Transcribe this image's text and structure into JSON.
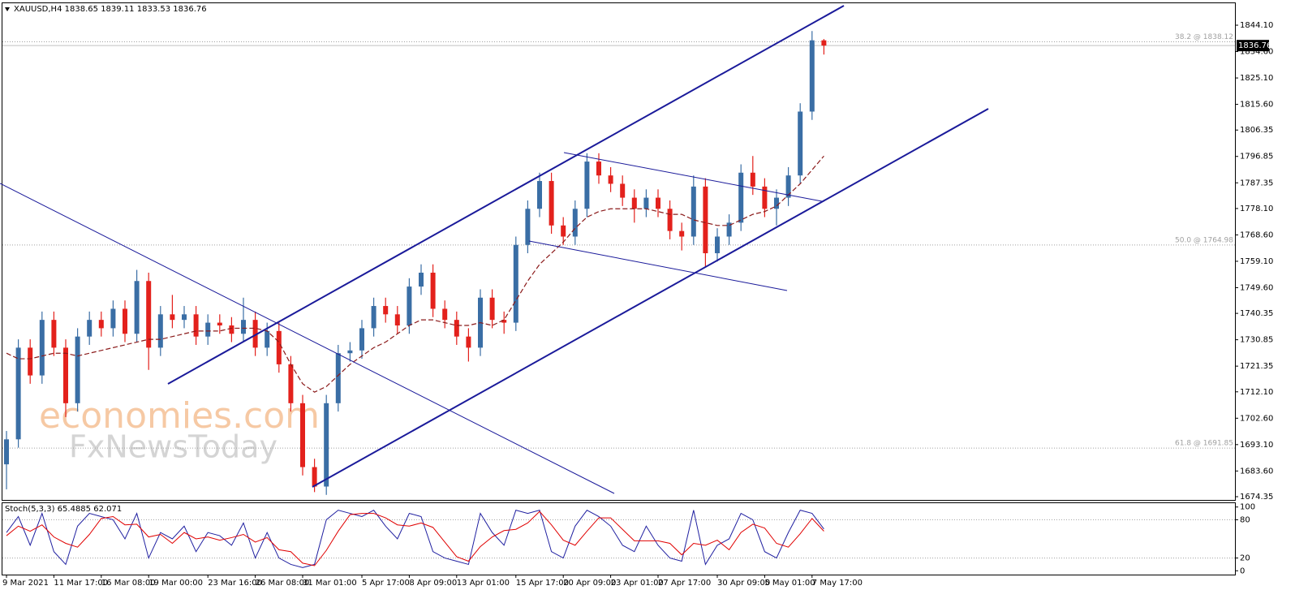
{
  "chart_data": {
    "type": "candlestick",
    "symbol": "XAUUSD,H4",
    "up_color": "#3a6ea5",
    "down_color": "#e3211c",
    "categories": [
      "9 Mar 2021",
      null,
      null,
      null,
      "11 Mar 17:00",
      null,
      null,
      null,
      "16 Mar 08:00",
      null,
      null,
      null,
      "19 Mar 00:00",
      null,
      null,
      null,
      null,
      "23 Mar 16:00",
      null,
      null,
      null,
      "26 Mar 08:00",
      null,
      null,
      null,
      "31 Mar 01:00",
      null,
      null,
      null,
      null,
      "5 Apr 17:00",
      null,
      null,
      null,
      "8 Apr 09:00",
      null,
      null,
      null,
      "13 Apr 01:00",
      null,
      null,
      null,
      null,
      "15 Apr 17:00",
      null,
      null,
      null,
      "20 Apr 09:00",
      null,
      null,
      null,
      "23 Apr 01:00",
      null,
      null,
      null,
      "27 Apr 17:00",
      null,
      null,
      null,
      null,
      "30 Apr 09:00",
      null,
      null,
      null,
      "5 May 01:00",
      null,
      null,
      null,
      "7 May 17:00",
      null
    ],
    "open": [
      1686,
      1695,
      1728,
      1718,
      1738,
      1728,
      1708,
      1732,
      1738,
      1735,
      1742,
      1733,
      1752,
      1728,
      1740,
      1738,
      1740,
      1732,
      1737,
      1736,
      1733,
      1738,
      1728,
      1734,
      1722,
      1708,
      1685,
      1678,
      1708,
      1726,
      1727,
      1735,
      1743,
      1740,
      1736,
      1750,
      1755,
      1742,
      1738,
      1732,
      1728,
      1746,
      1738,
      1737,
      1765,
      1778,
      1788,
      1772,
      1768,
      1778,
      1795,
      1790,
      1787,
      1782,
      1778,
      1782,
      1778,
      1770,
      1768,
      1786,
      1762,
      1768,
      1773,
      1791,
      1786,
      1778,
      1782,
      1790,
      1813,
      1838.65
    ],
    "high": [
      1698,
      1731,
      1731,
      1741,
      1741,
      1731,
      1735,
      1741,
      1741,
      1745,
      1745,
      1756,
      1755,
      1743,
      1747,
      1743,
      1743,
      1740,
      1740,
      1739,
      1746,
      1741,
      1737,
      1737,
      1725,
      1711,
      1688,
      1711,
      1729,
      1730,
      1738,
      1746,
      1746,
      1743,
      1753,
      1758,
      1758,
      1745,
      1741,
      1735,
      1749,
      1749,
      1741,
      1768,
      1781,
      1791,
      1791,
      1775,
      1781,
      1798,
      1798,
      1793,
      1790,
      1785,
      1785,
      1785,
      1781,
      1773,
      1790,
      1789,
      1771,
      1776,
      1794,
      1797,
      1789,
      1785,
      1793,
      1816,
      1842,
      1839.11
    ],
    "low": [
      1677,
      1692,
      1715,
      1715,
      1725,
      1703,
      1705,
      1729,
      1732,
      1732,
      1730,
      1730,
      1720,
      1725,
      1735,
      1735,
      1729,
      1729,
      1733,
      1730,
      1730,
      1725,
      1725,
      1719,
      1705,
      1682,
      1676,
      1675,
      1705,
      1723,
      1724,
      1732,
      1737,
      1733,
      1733,
      1747,
      1739,
      1735,
      1729,
      1723,
      1725,
      1735,
      1733,
      1734,
      1762,
      1775,
      1769,
      1765,
      1765,
      1775,
      1787,
      1784,
      1779,
      1773,
      1775,
      1775,
      1767,
      1763,
      1765,
      1757,
      1759,
      1765,
      1770,
      1783,
      1775,
      1772,
      1779,
      1787,
      1810,
      1833.53
    ],
    "close": [
      1695,
      1728,
      1718,
      1738,
      1728,
      1708,
      1732,
      1738,
      1735,
      1742,
      1733,
      1752,
      1728,
      1740,
      1738,
      1740,
      1732,
      1737,
      1736,
      1733,
      1738,
      1728,
      1734,
      1722,
      1708,
      1685,
      1678,
      1708,
      1726,
      1727,
      1735,
      1743,
      1740,
      1736,
      1750,
      1755,
      1742,
      1738,
      1732,
      1728,
      1746,
      1738,
      1737,
      1765,
      1778,
      1788,
      1772,
      1768,
      1778,
      1795,
      1790,
      1787,
      1782,
      1778,
      1782,
      1778,
      1770,
      1768,
      1786,
      1762,
      1768,
      1773,
      1791,
      1786,
      1778,
      1782,
      1790,
      1813,
      1838.65,
      1836.76
    ],
    "ma": {
      "color": "#8b1a1a",
      "values": [
        1726,
        1724,
        1724,
        1725,
        1726,
        1726,
        1725,
        1726,
        1727,
        1728,
        1729,
        1730,
        1731,
        1731,
        1732,
        1733,
        1734,
        1734,
        1734,
        1735,
        1735,
        1735,
        1734,
        1730,
        1722,
        1715,
        1712,
        1714,
        1718,
        1722,
        1725,
        1728,
        1730,
        1733,
        1736,
        1738,
        1738,
        1737,
        1736,
        1736,
        1737,
        1736,
        1738,
        1745,
        1752,
        1758,
        1762,
        1766,
        1771,
        1775,
        1777,
        1778,
        1778,
        1778,
        1778,
        1777,
        1776,
        1776,
        1774,
        1773,
        1772,
        1772,
        1774,
        1776,
        1777,
        1779,
        1783,
        1787,
        1792,
        1797
      ]
    },
    "ylim": [
      1673.18,
      1852.0
    ],
    "yticks": [
      {
        "value": 1674.35,
        "label": "1674.35"
      },
      {
        "value": 1683.6,
        "label": "1683.60"
      },
      {
        "value": 1693.1,
        "label": "1693.10"
      },
      {
        "value": 1702.6,
        "label": "1702.60"
      },
      {
        "value": 1712.1,
        "label": "1712.10"
      },
      {
        "value": 1721.35,
        "label": "1721.35"
      },
      {
        "value": 1730.85,
        "label": "1730.85"
      },
      {
        "value": 1740.35,
        "label": "1740.35"
      },
      {
        "value": 1749.6,
        "label": "1749.60"
      },
      {
        "value": 1759.1,
        "label": "1759.10"
      },
      {
        "value": 1768.6,
        "label": "1768.60"
      },
      {
        "value": 1778.1,
        "label": "1778.10"
      },
      {
        "value": 1787.35,
        "label": "1787.35"
      },
      {
        "value": 1796.85,
        "label": "1796.85"
      },
      {
        "value": 1806.35,
        "label": "1806.35"
      },
      {
        "value": 1815.6,
        "label": "1815.60"
      },
      {
        "value": 1825.1,
        "label": "1825.10"
      },
      {
        "value": 1834.6,
        "label": "1834.60"
      },
      {
        "value": 1844.1,
        "label": "1844.10"
      }
    ],
    "fib_levels": [
      {
        "value": 1838.12,
        "label": "38.2 @ 1838.12"
      },
      {
        "value": 1764.98,
        "label": "50.0 @ 1764.98"
      },
      {
        "value": 1691.85,
        "label": "61.8 @ 1691.85"
      }
    ],
    "watermark": [
      "economies.com",
      "FxNewsToday"
    ],
    "stoch": {
      "title": "Stoch(5,3,3)",
      "ylim": [
        -6,
        106
      ],
      "yticks": [
        0,
        20,
        80,
        100
      ],
      "levels": [
        20,
        80
      ],
      "k": {
        "color": "#1f1fa0",
        "values": [
          60,
          85,
          40,
          90,
          30,
          10,
          70,
          90,
          85,
          80,
          50,
          90,
          20,
          60,
          50,
          70,
          30,
          60,
          55,
          40,
          75,
          20,
          60,
          20,
          10,
          5,
          10,
          80,
          95,
          90,
          85,
          95,
          70,
          50,
          90,
          85,
          30,
          20,
          15,
          10,
          90,
          60,
          40,
          95,
          90,
          95,
          30,
          20,
          70,
          95,
          85,
          70,
          40,
          30,
          70,
          40,
          20,
          15,
          95,
          10,
          40,
          50,
          90,
          80,
          30,
          20,
          60,
          95,
          90,
          65.4885
        ]
      },
      "d": {
        "color": "#e00000",
        "values": [
          55,
          70,
          62,
          72,
          53,
          43,
          37,
          57,
          82,
          85,
          72,
          73,
          53,
          57,
          43,
          60,
          50,
          53,
          48,
          52,
          57,
          45,
          52,
          33,
          30,
          12,
          8,
          32,
          62,
          88,
          90,
          90,
          83,
          72,
          70,
          75,
          68,
          45,
          22,
          15,
          38,
          53,
          63,
          65,
          75,
          93,
          72,
          48,
          40,
          62,
          83,
          83,
          65,
          47,
          47,
          47,
          43,
          25,
          43,
          40,
          48,
          33,
          60,
          73,
          67,
          43,
          37,
          58,
          82,
          62.071
        ]
      }
    }
  }
}
